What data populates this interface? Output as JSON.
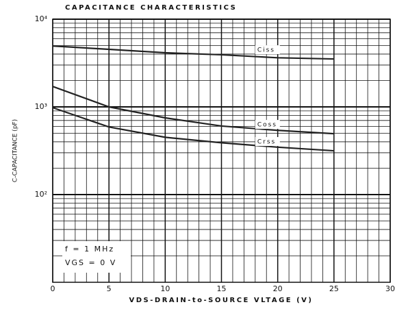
{
  "chart_data": {
    "type": "line",
    "title": "CAPACITANCE CHARACTERISTICS",
    "xlabel": "VDS-DRAIN-to-SOURCE VLTAGE (V)",
    "ylabel": "C-CAPACITANCE (pF)",
    "annotations": [
      "f = 1 MHz",
      "VGS = 0 V"
    ],
    "x": [
      0,
      5,
      10,
      15,
      20,
      25
    ],
    "series": [
      {
        "name": "Ciss",
        "color": "#222222",
        "values": [
          4950,
          4530,
          4140,
          3930,
          3630,
          3520
        ]
      },
      {
        "name": "Coss",
        "color": "#222222",
        "values": [
          1710,
          1000,
          750,
          605,
          540,
          495
        ]
      },
      {
        "name": "Crss",
        "color": "#222222",
        "values": [
          980,
          590,
          450,
          390,
          347,
          316
        ]
      }
    ],
    "xlim": [
      0,
      30
    ],
    "xticks": [
      0,
      5,
      10,
      15,
      20,
      25,
      30
    ],
    "ylim": [
      10,
      10000
    ],
    "log_y": true,
    "yticks": [
      {
        "value": 100,
        "label": "10²"
      },
      {
        "value": 1000,
        "label": "10³"
      },
      {
        "value": 10000,
        "label": "10⁴"
      }
    ],
    "grid": true
  }
}
